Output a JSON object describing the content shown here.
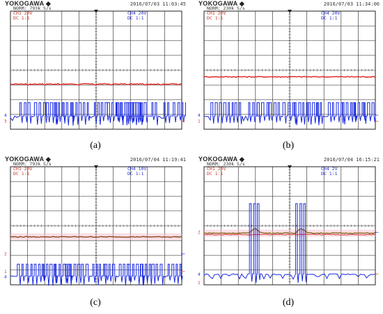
{
  "colors": {
    "ch1": "#e02020",
    "ch1_dark": "#8a6a20",
    "ch4": "#1a2ae0",
    "grid": "#222222",
    "pink": "#f2b8c8"
  },
  "chart_data": [
    {
      "type": "line",
      "caption": "(a)",
      "brand": "YOKOGAWA ◆",
      "sub": "NORM: 793k S/s",
      "timestamp": "2016/07/03 11:03:45",
      "ch_left": "CH1 20V",
      "ch_left_sub": "DC 1:1",
      "ch_right": "CH4 20V",
      "ch_right_sub": "DC 1:1",
      "trace1_color": "#e02020",
      "ch1_level": 3.06,
      "ch4_base": 0.9,
      "ch4_high": 1.8,
      "pulse_clusters": [
        0.55,
        1.4,
        2.1,
        2.55,
        3.05,
        3.55,
        4.0,
        4.9,
        5.65,
        6.2,
        6.75,
        7.1,
        7.55,
        8.25,
        8.95,
        9.5
      ],
      "marker_left": [
        "4",
        "3"
      ],
      "marker_right": [
        "←",
        "←"
      ]
    },
    {
      "type": "line",
      "caption": "(b)",
      "brand": "YOKOGAWA ◆",
      "sub": "NORM: 230k S/s",
      "timestamp": "2016/07/03 11:34:06",
      "ch_left": "CH1 20V",
      "ch_left_sub": "DC 1:1",
      "ch_right": "CH4 20V",
      "ch_right_sub": "DC 1:1",
      "trace1_color": "#e02020",
      "ch1_level": 3.55,
      "ch4_base": 0.9,
      "ch4_high": 1.8,
      "pulse_clusters": [
        0.4,
        0.9,
        1.8,
        2.6,
        3.1,
        3.8,
        4.6,
        5.25,
        6.1,
        6.6,
        7.25,
        8.1,
        8.7,
        9.3
      ],
      "marker_left": [
        "4",
        "1"
      ],
      "marker_right": [
        "←",
        "←"
      ]
    },
    {
      "type": "line",
      "caption": "(c)",
      "brand": "YOKOGAWA ◆",
      "sub": "NORM: 793k S/s",
      "timestamp": "2016/07/04 11:19:41",
      "ch_left": "CH1 20V",
      "ch_left_sub": "DC 1:1",
      "ch_right": "CH4 10V",
      "ch_right_sub": "DC 1:1",
      "trace1_color": "#8a4a20",
      "ch1_level": 3.25,
      "ch4_base": 0.6,
      "ch4_high": 1.4,
      "pulse_clusters": [
        0.4,
        1.2,
        1.85,
        2.6,
        3.2,
        4.15,
        4.8,
        5.5,
        6.35,
        6.9,
        7.6,
        8.25,
        9.2
      ],
      "marker_left": [
        "2",
        "1",
        "4"
      ],
      "marker_right": [
        "←",
        "←"
      ]
    },
    {
      "type": "line",
      "caption": "(d)",
      "brand": "YOKOGAWA ◆",
      "sub": "NORM: 230k S/s",
      "timestamp": "2016/07/04 16:15:21",
      "ch_left": "CH1 20V",
      "ch_left_sub": "DC 1:1",
      "ch_right": "CH4 2V",
      "ch_right_sub": "DC 1:1",
      "trace1_color": "#8a6a20",
      "ch1_level": 3.5,
      "ch4_base": 0.75,
      "ch4_high": 5.5,
      "pulse_clusters": [
        2.65,
        5.35
      ],
      "marker_left": [
        "2",
        "4",
        "1"
      ],
      "marker_right": [
        "←",
        "←"
      ]
    }
  ]
}
